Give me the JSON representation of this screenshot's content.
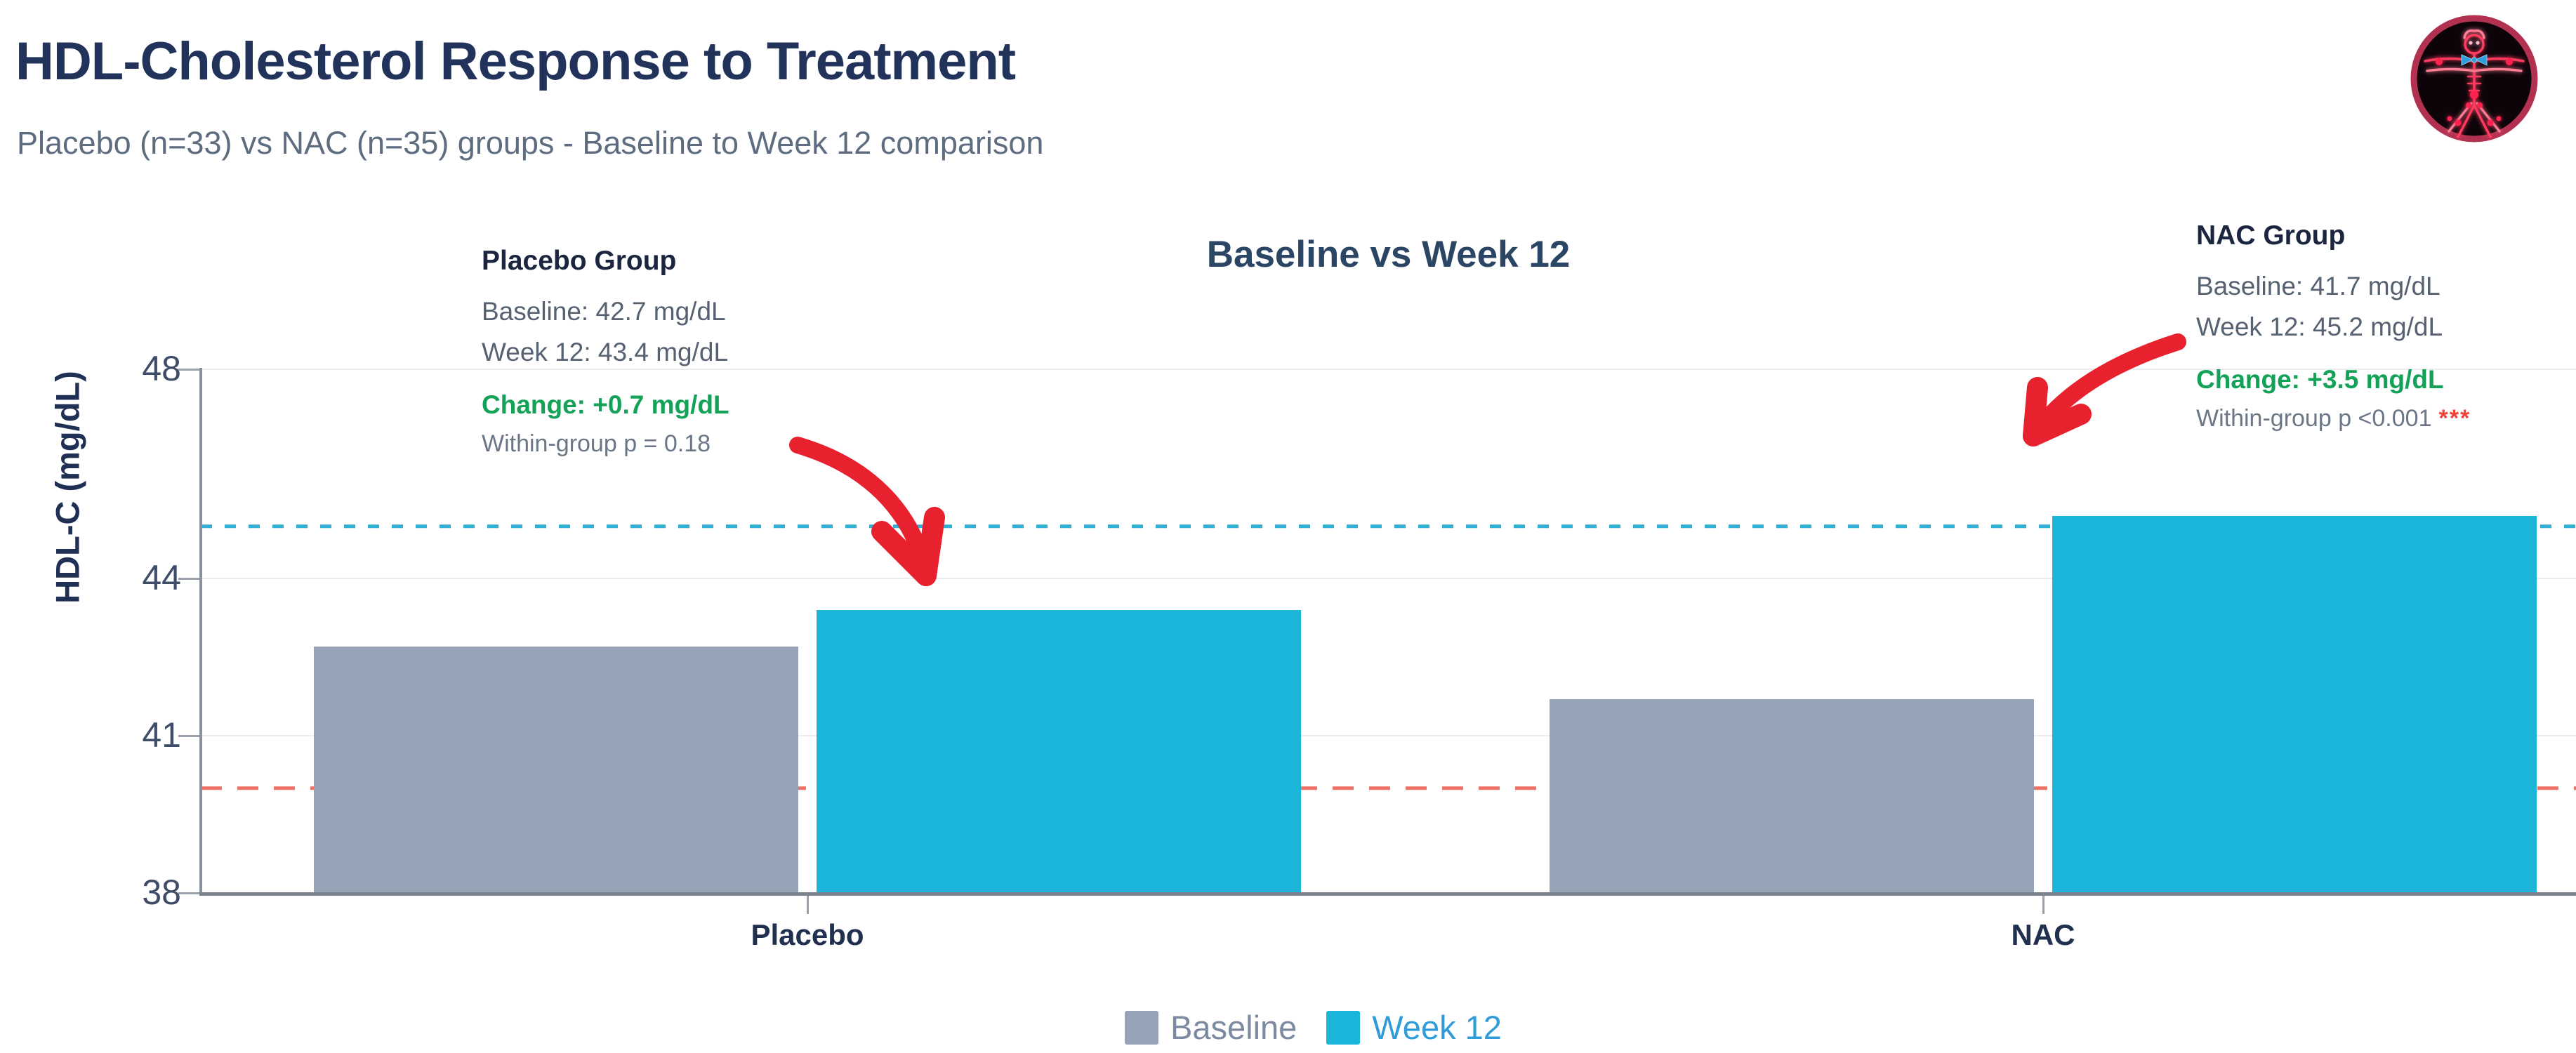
{
  "page": {
    "title": "HDL-Cholesterol Response to Treatment",
    "subtitle": "Placebo (n=33) vs NAC (n=35) groups - Baseline to Week 12 comparison"
  },
  "logo": {
    "name": "vitruvian-body-logo",
    "ring_color": "#b23150",
    "bg_color": "#0c0409",
    "figure_color": "#ff3d60",
    "bowtie_color": "#2f9fd9"
  },
  "chart_data": {
    "type": "bar",
    "title": "Baseline vs Week 12",
    "categories": [
      "Placebo",
      "NAC"
    ],
    "series": [
      {
        "name": "Baseline",
        "values": [
          42.7,
          41.7
        ],
        "color": "#97a3b6"
      },
      {
        "name": "Week 12",
        "values": [
          43.4,
          45.2
        ],
        "color": "#1cb5da"
      }
    ],
    "xlabel": "",
    "ylabel": "HDL-C (mg/dL)",
    "ylim": [
      38,
      48
    ],
    "yticks": [
      38,
      41,
      44,
      48
    ],
    "grid": true,
    "legend_position": "bottom",
    "reference_lines": [
      {
        "value": 45.0,
        "color": "#31b0d5",
        "style": "dashed",
        "name": "nac-week12-level"
      },
      {
        "value": 40.0,
        "color": "#f07168",
        "style": "dashed",
        "name": "low-hdl-threshold"
      }
    ]
  },
  "annotations": {
    "placebo": {
      "heading": "Placebo Group",
      "baseline": "Baseline: 42.7 mg/dL",
      "week12": "Week 12: 43.4 mg/dL",
      "change": "Change: +0.7 mg/dL",
      "p_value": "Within-group p = 0.18",
      "stars": ""
    },
    "nac": {
      "heading": "NAC Group",
      "baseline": "Baseline: 41.7 mg/dL",
      "week12": "Week 12: 45.2 mg/dL",
      "change": "Change: +3.5 mg/dL",
      "p_value": "Within-group p <0.001",
      "stars": "***"
    }
  },
  "legend": {
    "items": [
      {
        "label": "Baseline",
        "color": "#97a3b6",
        "text_color": "#7b89a1"
      },
      {
        "label": "Week 12",
        "color": "#1cb5da",
        "text_color": "#2f9bd8"
      }
    ]
  },
  "colors": {
    "title": "#22335b",
    "subtitle": "#5d6c7f",
    "change_green": "#13a257",
    "stars_red": "#ee4237",
    "arrow_red": "#e8212e",
    "gridline": "#ededf0",
    "axis": "#8a919d"
  }
}
